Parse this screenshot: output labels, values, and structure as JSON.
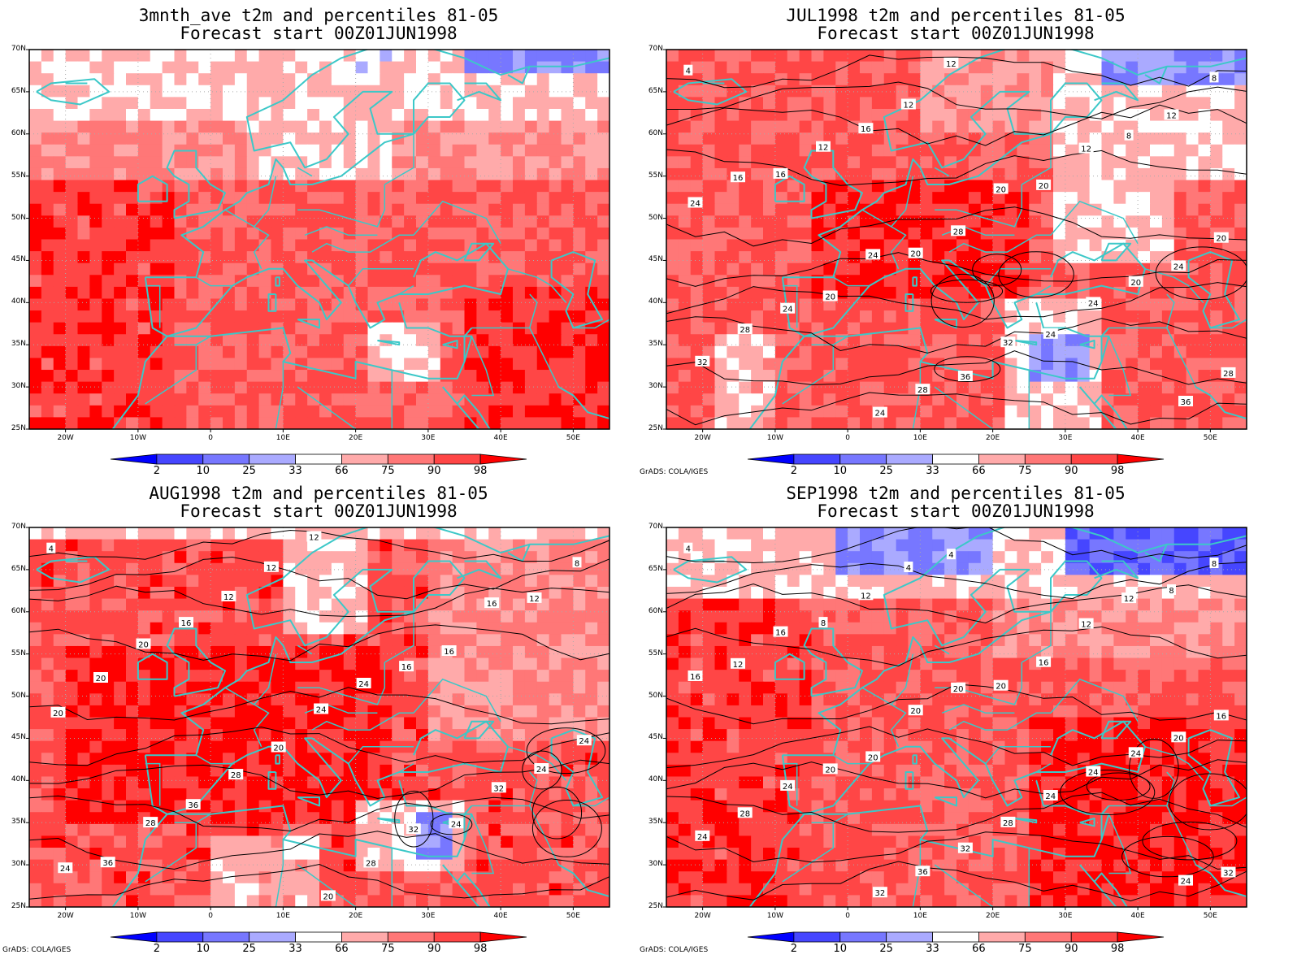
{
  "colorbar": {
    "labels": [
      "2",
      "10",
      "25",
      "33",
      "66",
      "75",
      "90",
      "98"
    ],
    "colors": [
      "#0000ff",
      "#4646ff",
      "#7777ff",
      "#aaaaff",
      "#ffffff",
      "#ffaaaa",
      "#ff7777",
      "#ff4646",
      "#ff0000"
    ]
  },
  "lat_labels": [
    "70N",
    "65N",
    "60N",
    "55N",
    "50N",
    "45N",
    "40N",
    "35N",
    "30N",
    "25N"
  ],
  "lon_labels": [
    "20W",
    "10W",
    "0",
    "10E",
    "20E",
    "30E",
    "40E",
    "50E"
  ],
  "credit": "GrADS: COLA/IGES",
  "colors": {
    "coast": "#3cc8c8",
    "contour": "#000000",
    "grid": "#aaaaaa"
  },
  "panels": [
    {
      "title1": "3mnth_ave t2m and percentiles 81-05",
      "title2": "Forecast start 00Z01JUN1998",
      "show_credit": false,
      "contour_labels": []
    },
    {
      "title1": "JUL1998 t2m and percentiles 81-05",
      "title2": "Forecast start 00Z01JUN1998",
      "show_credit": true,
      "contour_labels": [
        "4",
        "12",
        "8",
        "12",
        "12",
        "16",
        "8",
        "12",
        "12",
        "16",
        "20",
        "16",
        "20",
        "24",
        "28",
        "20",
        "20",
        "24",
        "24",
        "20",
        "20",
        "24",
        "24",
        "24",
        "28",
        "32",
        "32",
        "36",
        "28",
        "28",
        "36",
        "24"
      ]
    },
    {
      "title1": "AUG1998 t2m and percentiles 81-05",
      "title2": "Forecast start 00Z01JUN1998",
      "show_credit": true,
      "contour_labels": [
        "4",
        "12",
        "8",
        "12",
        "12",
        "12",
        "16",
        "16",
        "16",
        "20",
        "16",
        "20",
        "24",
        "20",
        "24",
        "24",
        "20",
        "24",
        "28",
        "32",
        "36",
        "24",
        "28",
        "32",
        "36",
        "28",
        "24",
        "20"
      ]
    },
    {
      "title1": "SEP1998 t2m and percentiles 81-05",
      "title2": "Forecast start 00Z01JUN1998",
      "show_credit": true,
      "contour_labels": [
        "4",
        "4",
        "8",
        "4",
        "8",
        "12",
        "12",
        "8",
        "12",
        "16",
        "16",
        "12",
        "20",
        "16",
        "20",
        "16",
        "20",
        "20",
        "20",
        "24",
        "20",
        "24",
        "24",
        "24",
        "28",
        "28",
        "24",
        "32",
        "32",
        "36",
        "24",
        "32"
      ]
    }
  ]
}
